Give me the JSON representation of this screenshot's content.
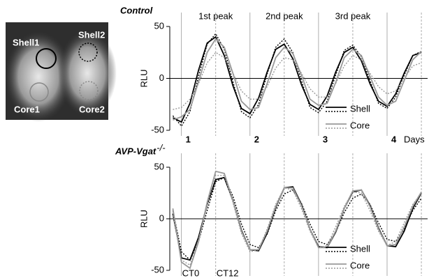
{
  "image": {
    "labels": [
      "Shell1",
      "Shell2",
      "Core1",
      "Core2"
    ]
  },
  "chart_data": [
    {
      "type": "line",
      "title": "Control",
      "y_label": "RLU",
      "x_label": "Days",
      "peaks": [
        "1st peak",
        "2nd peak",
        "3rd peak"
      ],
      "xlim": [
        0.83,
        4.53
      ],
      "xticks": [
        1,
        2,
        3,
        4
      ],
      "vlines": [
        1,
        2,
        3,
        4
      ],
      "ct12_lines": [
        1.5,
        2.5,
        3.5,
        4.5
      ],
      "ylim": [
        -50,
        50
      ],
      "yticks": [
        -50,
        0,
        50
      ],
      "legend": [
        {
          "label": "Shell",
          "color": "#000000"
        },
        {
          "label": "Core",
          "color": "#999999"
        }
      ],
      "x": [
        0.875,
        1,
        1.125,
        1.25,
        1.375,
        1.5,
        1.625,
        1.75,
        1.875,
        2,
        2.125,
        2.25,
        2.375,
        2.5,
        2.625,
        2.75,
        2.875,
        3,
        3.125,
        3.25,
        3.375,
        3.5,
        3.625,
        3.75,
        3.875,
        4,
        4.125,
        4.25,
        4.375,
        4.5
      ],
      "series": [
        {
          "color": "#000000",
          "dashed": false,
          "values": [
            -38,
            -42,
            -24,
            8,
            34,
            40,
            22,
            -7,
            -29,
            -34,
            -19,
            6,
            28,
            33,
            19,
            -6,
            -25,
            -30,
            -17,
            6,
            25,
            30,
            17,
            -5,
            -22,
            -27,
            -15,
            5,
            22,
            25
          ]
        },
        {
          "color": "#000000",
          "dashed": true,
          "values": [
            -36,
            -46,
            -32,
            2,
            33,
            43,
            28,
            -3,
            -32,
            -38,
            -25,
            4,
            30,
            38,
            25,
            -2,
            -28,
            -33,
            -22,
            3,
            27,
            32,
            21,
            -2,
            -24,
            -29,
            -18,
            3,
            22,
            26
          ]
        },
        {
          "color": "#999999",
          "dashed": false,
          "values": [
            -40,
            -37,
            -30,
            -3,
            25,
            38,
            30,
            5,
            -22,
            -30,
            -28,
            -5,
            20,
            30,
            24,
            3,
            -20,
            -26,
            -24,
            -4,
            20,
            28,
            22,
            2,
            -18,
            -26,
            -22,
            -2,
            18,
            26
          ]
        },
        {
          "color": "#999999",
          "dashed": true,
          "values": [
            -30,
            -28,
            -20,
            -5,
            15,
            25,
            20,
            5,
            -12,
            -20,
            -20,
            -8,
            10,
            20,
            18,
            5,
            -10,
            -18,
            -18,
            -5,
            12,
            22,
            18,
            5,
            -8,
            -15,
            -12,
            0,
            12,
            15
          ]
        }
      ]
    },
    {
      "type": "line",
      "title": "AVP-Vgat",
      "title_sup": "-/-",
      "y_label": "RLU",
      "ct_labels": [
        {
          "value": 1,
          "label": "CT0"
        },
        {
          "value": 1.5,
          "label": "CT12"
        }
      ],
      "xlim": [
        0.83,
        4.53
      ],
      "vlines": [
        1,
        2,
        3,
        4
      ],
      "ct12_lines": [
        1.5,
        2.5,
        3.5,
        4.5
      ],
      "ylim": [
        -50,
        50
      ],
      "yticks": [
        -50,
        0,
        50
      ],
      "legend": [
        {
          "label": "Shell",
          "color": "#000000"
        },
        {
          "label": "Core",
          "color": "#999999"
        }
      ],
      "x": [
        0.875,
        1,
        1.125,
        1.25,
        1.375,
        1.5,
        1.625,
        1.75,
        1.875,
        2,
        2.125,
        2.25,
        2.375,
        2.5,
        2.625,
        2.75,
        2.875,
        3,
        3.125,
        3.25,
        3.375,
        3.5,
        3.625,
        3.75,
        3.875,
        4,
        4.125,
        4.25,
        4.375,
        4.5
      ],
      "series": [
        {
          "color": "#000000",
          "dashed": false,
          "values": [
            5,
            -38,
            -40,
            -18,
            14,
            38,
            40,
            18,
            -11,
            -30,
            -31,
            -14,
            11,
            30,
            31,
            14,
            -10,
            -27,
            -28,
            -13,
            10,
            26,
            28,
            13,
            -9,
            -26,
            -27,
            -12,
            10,
            25
          ]
        },
        {
          "color": "#000000",
          "dashed": true,
          "values": [
            8,
            -32,
            -40,
            -22,
            8,
            36,
            40,
            22,
            -5,
            -25,
            -28,
            -15,
            8,
            24,
            28,
            15,
            -5,
            -22,
            -25,
            -13,
            6,
            20,
            24,
            14,
            -4,
            -20,
            -22,
            -10,
            8,
            20
          ]
        },
        {
          "color": "#999999",
          "dashed": false,
          "values": [
            10,
            -42,
            -48,
            -22,
            16,
            46,
            44,
            18,
            -12,
            -30,
            -30,
            -12,
            12,
            30,
            30,
            13,
            -10,
            -28,
            -28,
            -12,
            10,
            27,
            28,
            12,
            -10,
            -26,
            -25,
            -8,
            12,
            26
          ]
        },
        {
          "color": "#999999",
          "dashed": true,
          "values": [
            6,
            -40,
            -45,
            -20,
            14,
            42,
            42,
            16,
            -14,
            -32,
            -30,
            -10,
            14,
            30,
            28,
            10,
            -12,
            -28,
            -26,
            -8,
            12,
            26,
            25,
            8,
            -12,
            -26,
            -22,
            -4,
            14,
            25
          ]
        }
      ]
    }
  ]
}
